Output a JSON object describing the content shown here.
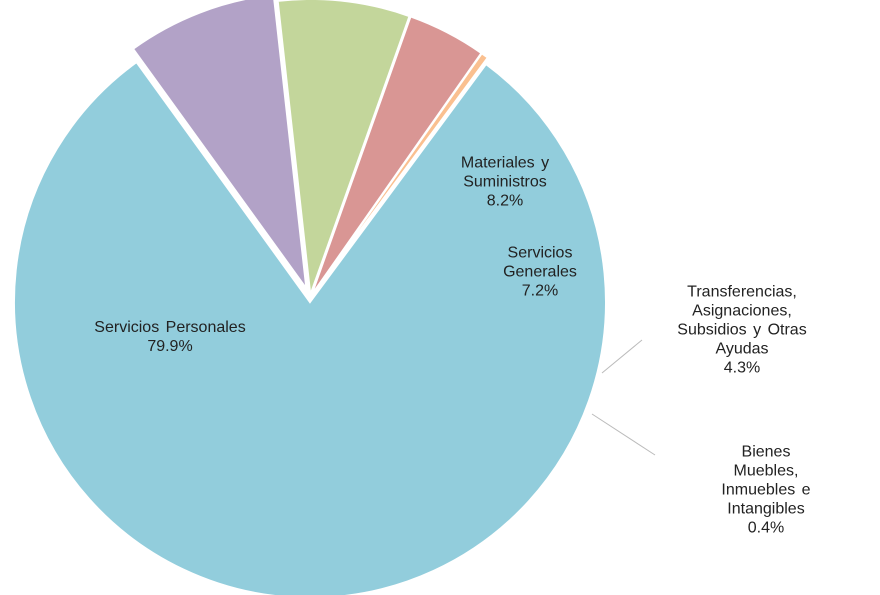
{
  "chart_data": {
    "type": "pie",
    "categories": [
      "Servicios Personales",
      "Materiales y\nSuministros",
      "Servicios\nGenerales",
      "Transferencias,\nAsignaciones,\nSubsidios y Otras\nAyudas",
      "Bienes Muebles,\nInmuebles e Intangibles"
    ],
    "values": [
      79.9,
      8.2,
      7.2,
      4.3,
      0.4
    ],
    "value_labels": [
      "79.9%",
      "8.2%",
      "7.2%",
      "4.3%",
      "0.4%"
    ],
    "colors": [
      "#92cddc",
      "#b2a2c7",
      "#c3d69b",
      "#d99694",
      "#fac090"
    ]
  }
}
